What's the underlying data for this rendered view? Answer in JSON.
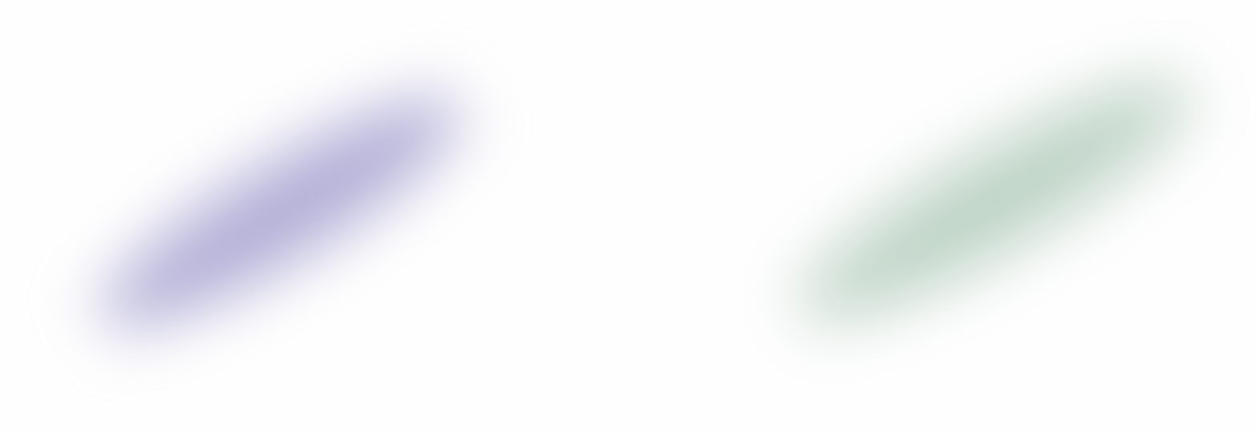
{
  "blobs": [
    {
      "color": "#b2aed6"
    },
    {
      "color": "#bcd2c4"
    }
  ],
  "background": "#fefefe"
}
